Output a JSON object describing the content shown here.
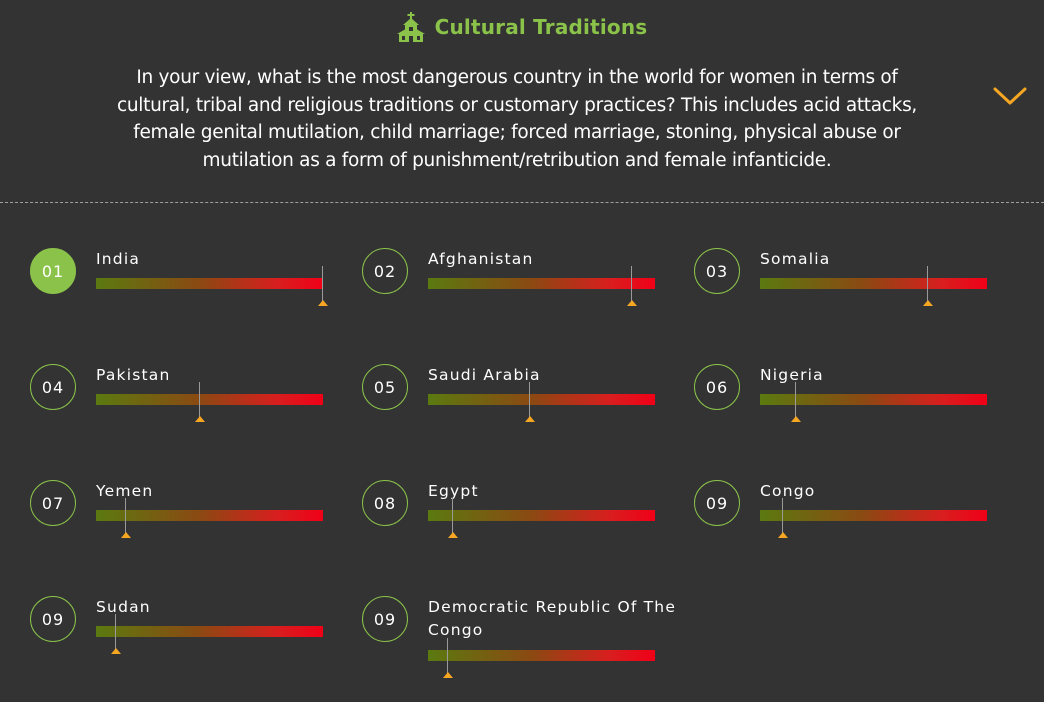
{
  "header": {
    "icon": "church-icon",
    "title": "Cultural Traditions",
    "question_lines": [
      "In your view, what is the most dangerous country in the world for women in terms of",
      "cultural, tribal and religious traditions or customary practices? This includes acid attacks,",
      "female genital mutilation, child marriage; forced marriage, stoning, physical abuse or",
      "mutilation as a form of punishment/retribution and female infanticide."
    ],
    "expand_icon": "chevron-down-icon"
  },
  "colors": {
    "background": "#333333",
    "accent_green": "#8bc34a",
    "marker_orange": "#f5a623",
    "bar_start": "#5b7a10",
    "bar_end": "#f00018"
  },
  "rankings": [
    {
      "rank": "01",
      "country": "India",
      "score": 1.0
    },
    {
      "rank": "02",
      "country": "Afghanistan",
      "score": 0.9
    },
    {
      "rank": "03",
      "country": "Somalia",
      "score": 0.74
    },
    {
      "rank": "04",
      "country": "Pakistan",
      "score": 0.46
    },
    {
      "rank": "05",
      "country": "Saudi Arabia",
      "score": 0.45
    },
    {
      "rank": "06",
      "country": "Nigeria",
      "score": 0.16
    },
    {
      "rank": "07",
      "country": "Yemen",
      "score": 0.13
    },
    {
      "rank": "08",
      "country": "Egypt",
      "score": 0.11
    },
    {
      "rank": "09",
      "country": "Congo",
      "score": 0.1
    },
    {
      "rank": "09",
      "country": "Sudan",
      "score": 0.09
    },
    {
      "rank": "09",
      "country": "Democratic Republic Of The Congo",
      "score": 0.09
    }
  ]
}
